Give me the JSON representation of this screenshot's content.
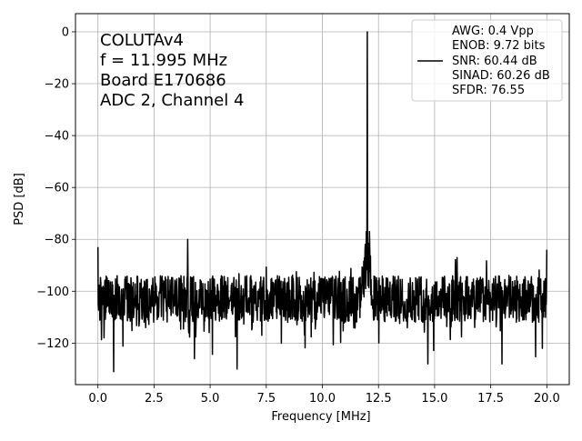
{
  "chart_data": {
    "type": "line",
    "xlabel": "Frequency [MHz]",
    "ylabel": "PSD [dB]",
    "xlim": [
      -1.0,
      21.0
    ],
    "ylim": [
      -136,
      7
    ],
    "xticks": [
      0.0,
      2.5,
      5.0,
      7.5,
      10.0,
      12.5,
      15.0,
      17.5,
      20.0
    ],
    "xtick_labels": [
      "0.0",
      "2.5",
      "5.0",
      "7.5",
      "10.0",
      "12.5",
      "15.0",
      "17.5",
      "20.0"
    ],
    "yticks": [
      0,
      -20,
      -40,
      -60,
      -80,
      -100,
      -120
    ],
    "ytick_labels": [
      "0",
      "−20",
      "−40",
      "−60",
      "−80",
      "−100",
      "−120"
    ],
    "grid": true,
    "annotation": {
      "position": "top-left",
      "lines": [
        "COLUTAv4",
        "f = 11.995 MHz",
        "Board E170686",
        "ADC 2, Channel 4"
      ]
    },
    "legend": {
      "position": "top-right",
      "lines": [
        "AWG: 0.4 Vpp",
        "ENOB: 9.72 bits",
        "SNR: 60.44 dB",
        "SINAD: 60.26 dB",
        "SFDR: 76.55"
      ]
    },
    "series": [
      {
        "color": "#000000",
        "noise_floor_db": -103,
        "fundamental": {
          "x": 11.995,
          "y": 0
        },
        "features": [
          {
            "x": 0.0,
            "y": -83
          },
          {
            "x": 4.0,
            "y": -80
          },
          {
            "x": 8.0,
            "y": -94
          },
          {
            "x": 12.1,
            "y": -77
          },
          {
            "x": 16.0,
            "y": -87
          },
          {
            "x": 20.0,
            "y": -84
          }
        ],
        "dips": [
          {
            "x": 0.7,
            "y": -131
          },
          {
            "x": 4.3,
            "y": -126
          },
          {
            "x": 6.2,
            "y": -130
          },
          {
            "x": 14.7,
            "y": -128
          },
          {
            "x": 18.0,
            "y": -128
          },
          {
            "x": 19.8,
            "y": -122
          }
        ]
      }
    ]
  }
}
